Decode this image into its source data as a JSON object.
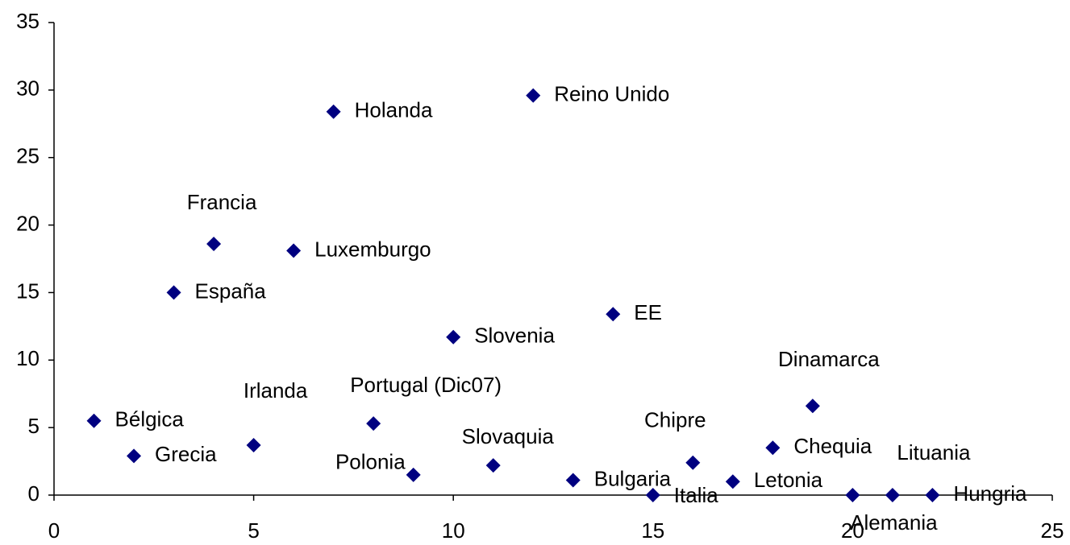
{
  "chart_data": {
    "type": "scatter",
    "color": "#000080",
    "labels": [
      "Bélgica",
      "Grecia",
      "España",
      "Francia",
      "Irlanda",
      "Luxemburgo",
      "Holanda",
      "Portugal (Dic07)",
      "Polonia",
      "Slovenia",
      "Slovaquia",
      "Reino Unido",
      "Bulgaria",
      "EE",
      "Italia",
      "Chipre",
      "Letonia",
      "Chequia",
      "Dinamarca",
      "Alemania",
      "Lituania",
      "Hungria"
    ],
    "x": [
      1,
      2,
      3,
      4,
      5,
      6,
      7,
      8,
      9,
      10,
      11,
      12,
      13,
      14,
      15,
      16,
      17,
      18,
      19,
      20,
      21,
      22
    ],
    "values": [
      5.5,
      2.9,
      15.0,
      18.6,
      3.7,
      18.1,
      28.4,
      5.3,
      1.5,
      11.7,
      2.2,
      29.6,
      1.1,
      13.4,
      0,
      2.4,
      1.0,
      3.5,
      6.6,
      0,
      0,
      0
    ],
    "xlim": [
      0,
      25
    ],
    "xticks": [
      0,
      5,
      10,
      15,
      20,
      25
    ],
    "ylim": [
      0,
      35
    ],
    "yticks": [
      0,
      5,
      10,
      15,
      20,
      25,
      30,
      35
    ]
  }
}
